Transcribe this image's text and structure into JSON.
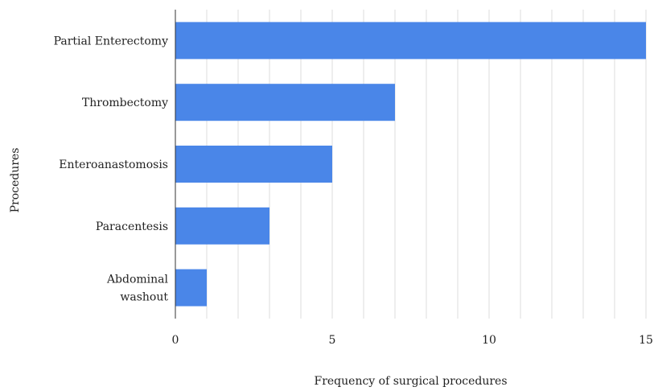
{
  "chart_data": {
    "type": "bar",
    "orientation": "horizontal",
    "categories": [
      "Partial Enterectomy",
      "Thrombectomy",
      "Enteroanastomosis",
      "Paracentesis",
      "Abdominal washout"
    ],
    "category_label_lines": [
      [
        "Partial Enterectomy"
      ],
      [
        "Thrombectomy"
      ],
      [
        "Enteroanastomosis"
      ],
      [
        "Paracentesis"
      ],
      [
        "Abdominal",
        "washout"
      ]
    ],
    "values": [
      15,
      7,
      5,
      3,
      1
    ],
    "xlabel": "Frequency of surgical procedures",
    "ylabel": "Procedures",
    "xlim": [
      0,
      15
    ],
    "x_ticks": [
      0,
      5,
      10,
      15
    ],
    "grid_step": 1,
    "grid": true,
    "bar_color": "#4a86e8"
  }
}
